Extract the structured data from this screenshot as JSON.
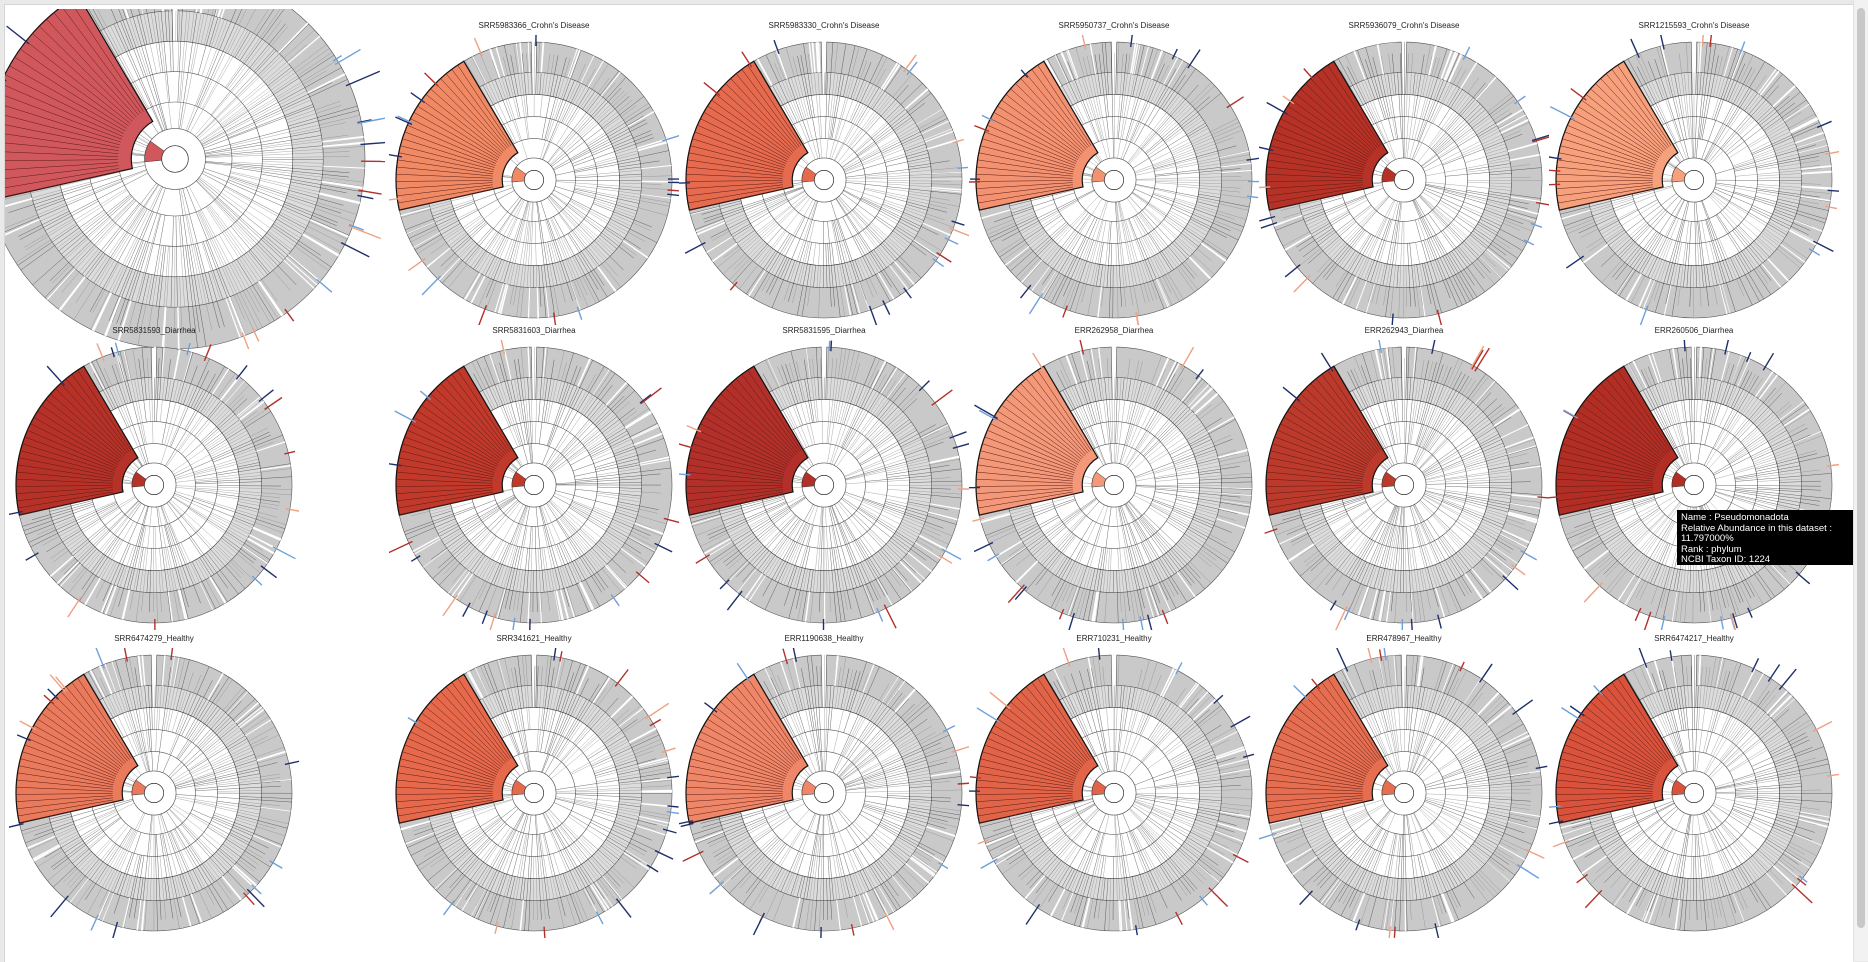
{
  "panels": [
    {
      "title": "",
      "sample": "large",
      "color": "#d0585c",
      "rank": 0
    },
    {
      "title": "SRR5983366_Crohn's Disease",
      "color": "#f08a64"
    },
    {
      "title": "SRR5983330_Crohn's Disease",
      "color": "#e56a4e"
    },
    {
      "title": "SRR5950737_Crohn's Disease",
      "color": "#f39270"
    },
    {
      "title": "SRR5936079_Crohn's Disease",
      "color": "#b73226"
    },
    {
      "title": "SRR1215593_Crohn's Disease",
      "color": "#f7a07c"
    },
    {
      "title": "SRR5831593_Diarrhea",
      "color": "#b63228"
    },
    {
      "title": "SRR5831603_Diarrhea",
      "color": "#c0392b"
    },
    {
      "title": "SRR5831595_Diarrhea",
      "color": "#b3302a"
    },
    {
      "title": "ERR262958_Diarrhea",
      "color": "#f39878"
    },
    {
      "title": "ERR262943_Diarrhea",
      "color": "#bb3a2c"
    },
    {
      "title": "ERR260506_Diarrhea",
      "color": "#b22e24"
    },
    {
      "title": "SRR6474279_Healthy",
      "color": "#ea7a5c"
    },
    {
      "title": "SRR341621_Healthy",
      "color": "#e6694c"
    },
    {
      "title": "ERR1190638_Healthy",
      "color": "#ef8668"
    },
    {
      "title": "ERR710231_Healthy",
      "color": "#e16448"
    },
    {
      "title": "ERR478967_Healthy",
      "color": "#e56e50"
    },
    {
      "title": "SRR6474217_Healthy",
      "color": "#d9523c"
    }
  ],
  "tooltip": {
    "name_line": "Name : Pseudomonadota",
    "abundance_label": "Relative Abundance in this dataset :",
    "abundance_value": "11.797000%",
    "rank_line": "Rank : phylum",
    "taxon_line": "NCBI Taxon ID: 1224"
  },
  "colors": {
    "ring_gray": "#bdbdbd",
    "line_gray": "#444444",
    "blue_dark": "#1f2f6b",
    "blue_light": "#6ea0d8",
    "red_dark": "#b2302a",
    "red_light": "#f0a080"
  }
}
